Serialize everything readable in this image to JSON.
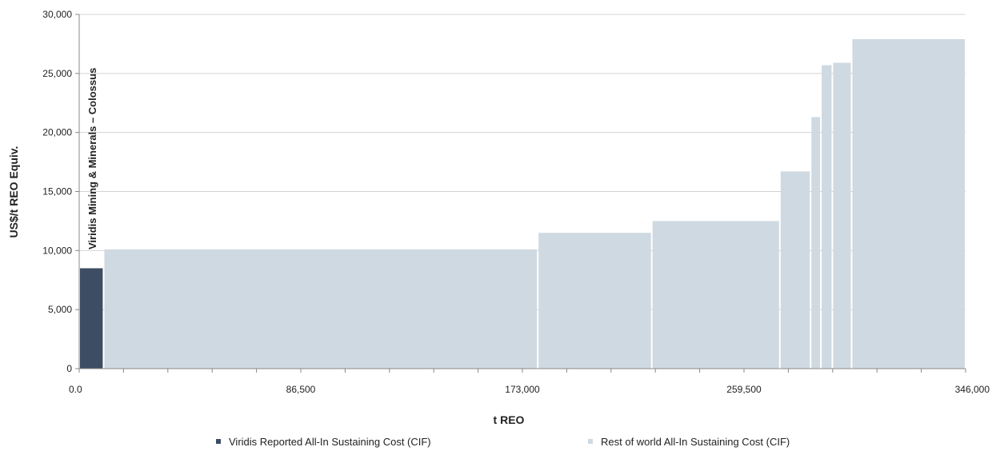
{
  "chart_data": {
    "type": "bar",
    "subtype": "cost-curve",
    "title": "",
    "xlabel": "t REO",
    "ylabel": "US$/t REO Equiv.",
    "xlim": [
      0,
      346000
    ],
    "ylim": [
      0,
      30000
    ],
    "x_ticks": [
      0,
      86500,
      173000,
      259500,
      346000
    ],
    "x_tick_labels": [
      "0.0",
      "86,500",
      "173,000",
      "259,500",
      "346,000"
    ],
    "x_minor_step": 17300,
    "y_ticks": [
      0,
      5000,
      10000,
      15000,
      20000,
      25000,
      30000
    ],
    "y_tick_labels": [
      "0",
      "5,000",
      "10,000",
      "15,000",
      "20,000",
      "25,000",
      "30,000"
    ],
    "grid": "horizontal",
    "annotation": "Viridis Mining & Minerals – Colossus",
    "legend_position": "bottom",
    "series": [
      {
        "name": "Viridis Reported All-In Sustaining Cost (CIF)",
        "color": "#3d4d63",
        "bars": [
          {
            "x_start": 0,
            "x_end": 9500,
            "value": 8500
          }
        ]
      },
      {
        "name": "Rest of world All-In Sustaining Cost (CIF)",
        "color": "#cfd9e1",
        "bars": [
          {
            "x_start": 9500,
            "x_end": 179000,
            "value": 10100
          },
          {
            "x_start": 179000,
            "x_end": 223500,
            "value": 11500
          },
          {
            "x_start": 223500,
            "x_end": 273500,
            "value": 12500
          },
          {
            "x_start": 273500,
            "x_end": 285500,
            "value": 16700
          },
          {
            "x_start": 285500,
            "x_end": 289500,
            "value": 21300
          },
          {
            "x_start": 289500,
            "x_end": 294000,
            "value": 25700
          },
          {
            "x_start": 294000,
            "x_end": 301500,
            "value": 25900
          },
          {
            "x_start": 301500,
            "x_end": 346000,
            "value": 27900
          }
        ]
      }
    ]
  }
}
